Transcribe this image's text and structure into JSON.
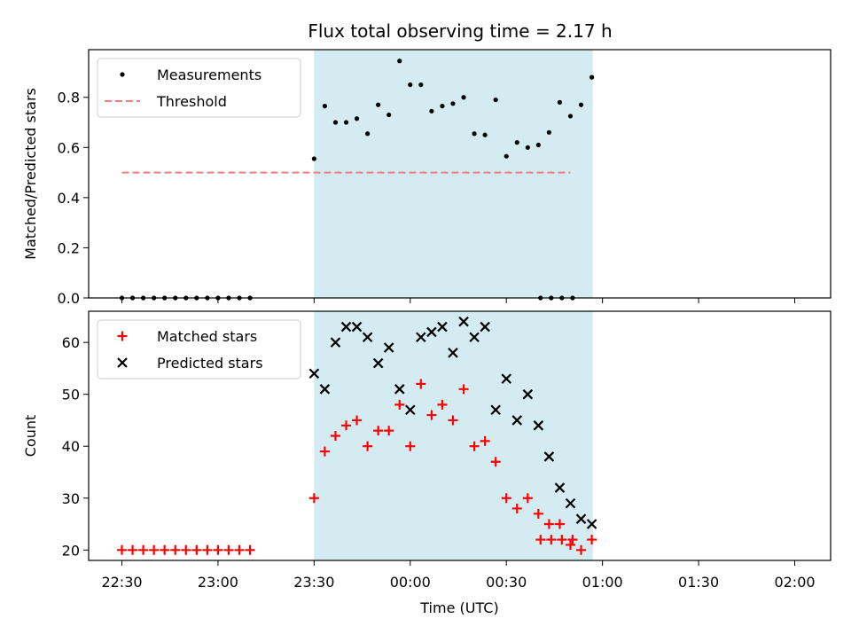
{
  "title": "Flux total observing time = 2.17 h",
  "colors": {
    "shade": "#d3ebf1",
    "threshold": "#f08080",
    "measurement": "#000000",
    "matched": "#ff0000",
    "predicted": "#000000"
  },
  "chart_data": [
    {
      "type": "scatter",
      "ylabel": "Matched/Predicted stars",
      "ylim": [
        0,
        0.99
      ],
      "yticks": [
        0.0,
        0.2,
        0.4,
        0.6,
        0.8
      ],
      "ytick_labels": [
        "0.0",
        "0.2",
        "0.4",
        "0.6",
        "0.8"
      ],
      "legend_position": "top-left",
      "shaded_span_minutes": [
        60,
        147
      ],
      "threshold": {
        "name": "Threshold",
        "value": 0.5,
        "x_start": 0,
        "x_end": 140
      },
      "series": [
        {
          "name": "Measurements",
          "marker": "dot",
          "x": [
            0,
            3.33,
            6.67,
            10,
            13.33,
            16.67,
            20,
            23.33,
            26.67,
            30,
            33.33,
            36.67,
            40,
            60,
            63.33,
            66.67,
            70,
            73.33,
            76.67,
            80,
            83.33,
            86.67,
            90,
            93.33,
            96.67,
            100,
            103.33,
            106.67,
            110,
            113.33,
            116.67,
            120,
            123.33,
            126.67,
            130,
            133.33,
            136.67,
            140,
            143.33,
            146.67,
            130.67,
            134,
            137.33,
            140.67
          ],
          "y": [
            0,
            0,
            0,
            0,
            0,
            0,
            0,
            0,
            0,
            0,
            0,
            0,
            0,
            0.555,
            0.765,
            0.7,
            0.7,
            0.715,
            0.655,
            0.77,
            0.73,
            0.945,
            0.85,
            0.85,
            0.745,
            0.765,
            0.775,
            0.8,
            0.655,
            0.65,
            0.79,
            0.565,
            0.62,
            0.6,
            0.61,
            0.66,
            0.78,
            0.725,
            0.77,
            0.88,
            0,
            0,
            0,
            0
          ]
        }
      ]
    },
    {
      "type": "scatter",
      "xlabel": "Time (UTC)",
      "ylabel": "Count",
      "ylim": [
        18,
        66
      ],
      "yticks": [
        20,
        30,
        40,
        50,
        60
      ],
      "ytick_labels": [
        "20",
        "30",
        "40",
        "50",
        "60"
      ],
      "xticks": [
        0,
        30,
        60,
        90,
        120,
        150,
        180,
        210
      ],
      "xtick_labels": [
        "22:30",
        "23:00",
        "23:30",
        "00:00",
        "00:30",
        "01:00",
        "01:30",
        "02:00"
      ],
      "legend_position": "top-left",
      "series": [
        {
          "name": "Matched stars",
          "marker": "plus",
          "x": [
            0,
            3.33,
            6.67,
            10,
            13.33,
            16.67,
            20,
            23.33,
            26.67,
            30,
            33.33,
            36.67,
            40,
            60,
            63.33,
            66.67,
            70,
            73.33,
            76.67,
            80,
            83.33,
            86.67,
            90,
            93.33,
            96.67,
            100,
            103.33,
            106.67,
            110,
            113.33,
            116.67,
            120,
            123.33,
            126.67,
            130,
            133.33,
            136.67,
            140,
            143.33,
            146.67,
            130.67,
            134,
            137.33,
            140.67
          ],
          "y": [
            20,
            20,
            20,
            20,
            20,
            20,
            20,
            20,
            20,
            20,
            20,
            20,
            20,
            30,
            39,
            42,
            44,
            45,
            40,
            43,
            43,
            48,
            40,
            52,
            46,
            48,
            45,
            51,
            40,
            41,
            37,
            30,
            28,
            30,
            27,
            25,
            25,
            21,
            20,
            22,
            22,
            22,
            22,
            22
          ]
        },
        {
          "name": "Predicted stars",
          "marker": "cross",
          "x": [
            60,
            63.33,
            66.67,
            70,
            73.33,
            76.67,
            80,
            83.33,
            86.67,
            90,
            93.33,
            96.67,
            100,
            103.33,
            106.67,
            110,
            113.33,
            116.67,
            120,
            123.33,
            126.67,
            130,
            133.33,
            136.67,
            140,
            143.33,
            146.67
          ],
          "y": [
            54,
            51,
            60,
            63,
            63,
            61,
            56,
            59,
            51,
            47,
            61,
            62,
            63,
            58,
            64,
            61,
            63,
            47,
            53,
            45,
            50,
            44,
            38,
            32,
            29,
            26,
            25
          ]
        }
      ]
    }
  ]
}
